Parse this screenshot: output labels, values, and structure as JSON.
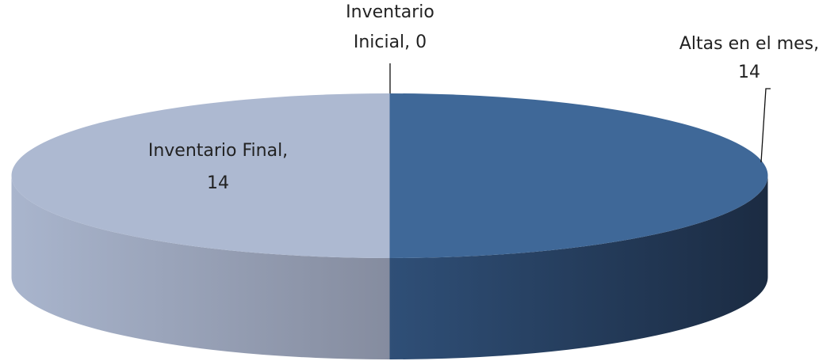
{
  "chart_data": {
    "type": "pie3d",
    "categories": [
      "Inventario Inicial",
      "Altas en el mes",
      "Inventario Final"
    ],
    "values": [
      0,
      14,
      14
    ],
    "value_labels": [
      [
        "Inventario",
        "Inicial, 0"
      ],
      [
        "Altas en el mes,",
        "14"
      ],
      [
        "Inventario Final,",
        "14"
      ]
    ],
    "colors": [
      "#5a7fb0",
      "#3f6898",
      "#adb9d1"
    ],
    "side_colors": [
      [
        "#4a6c98",
        "#2a4466"
      ],
      [
        "#2f4f77",
        "#1b2b42"
      ],
      [
        "#a9b5cd",
        "#858c9f"
      ]
    ]
  }
}
